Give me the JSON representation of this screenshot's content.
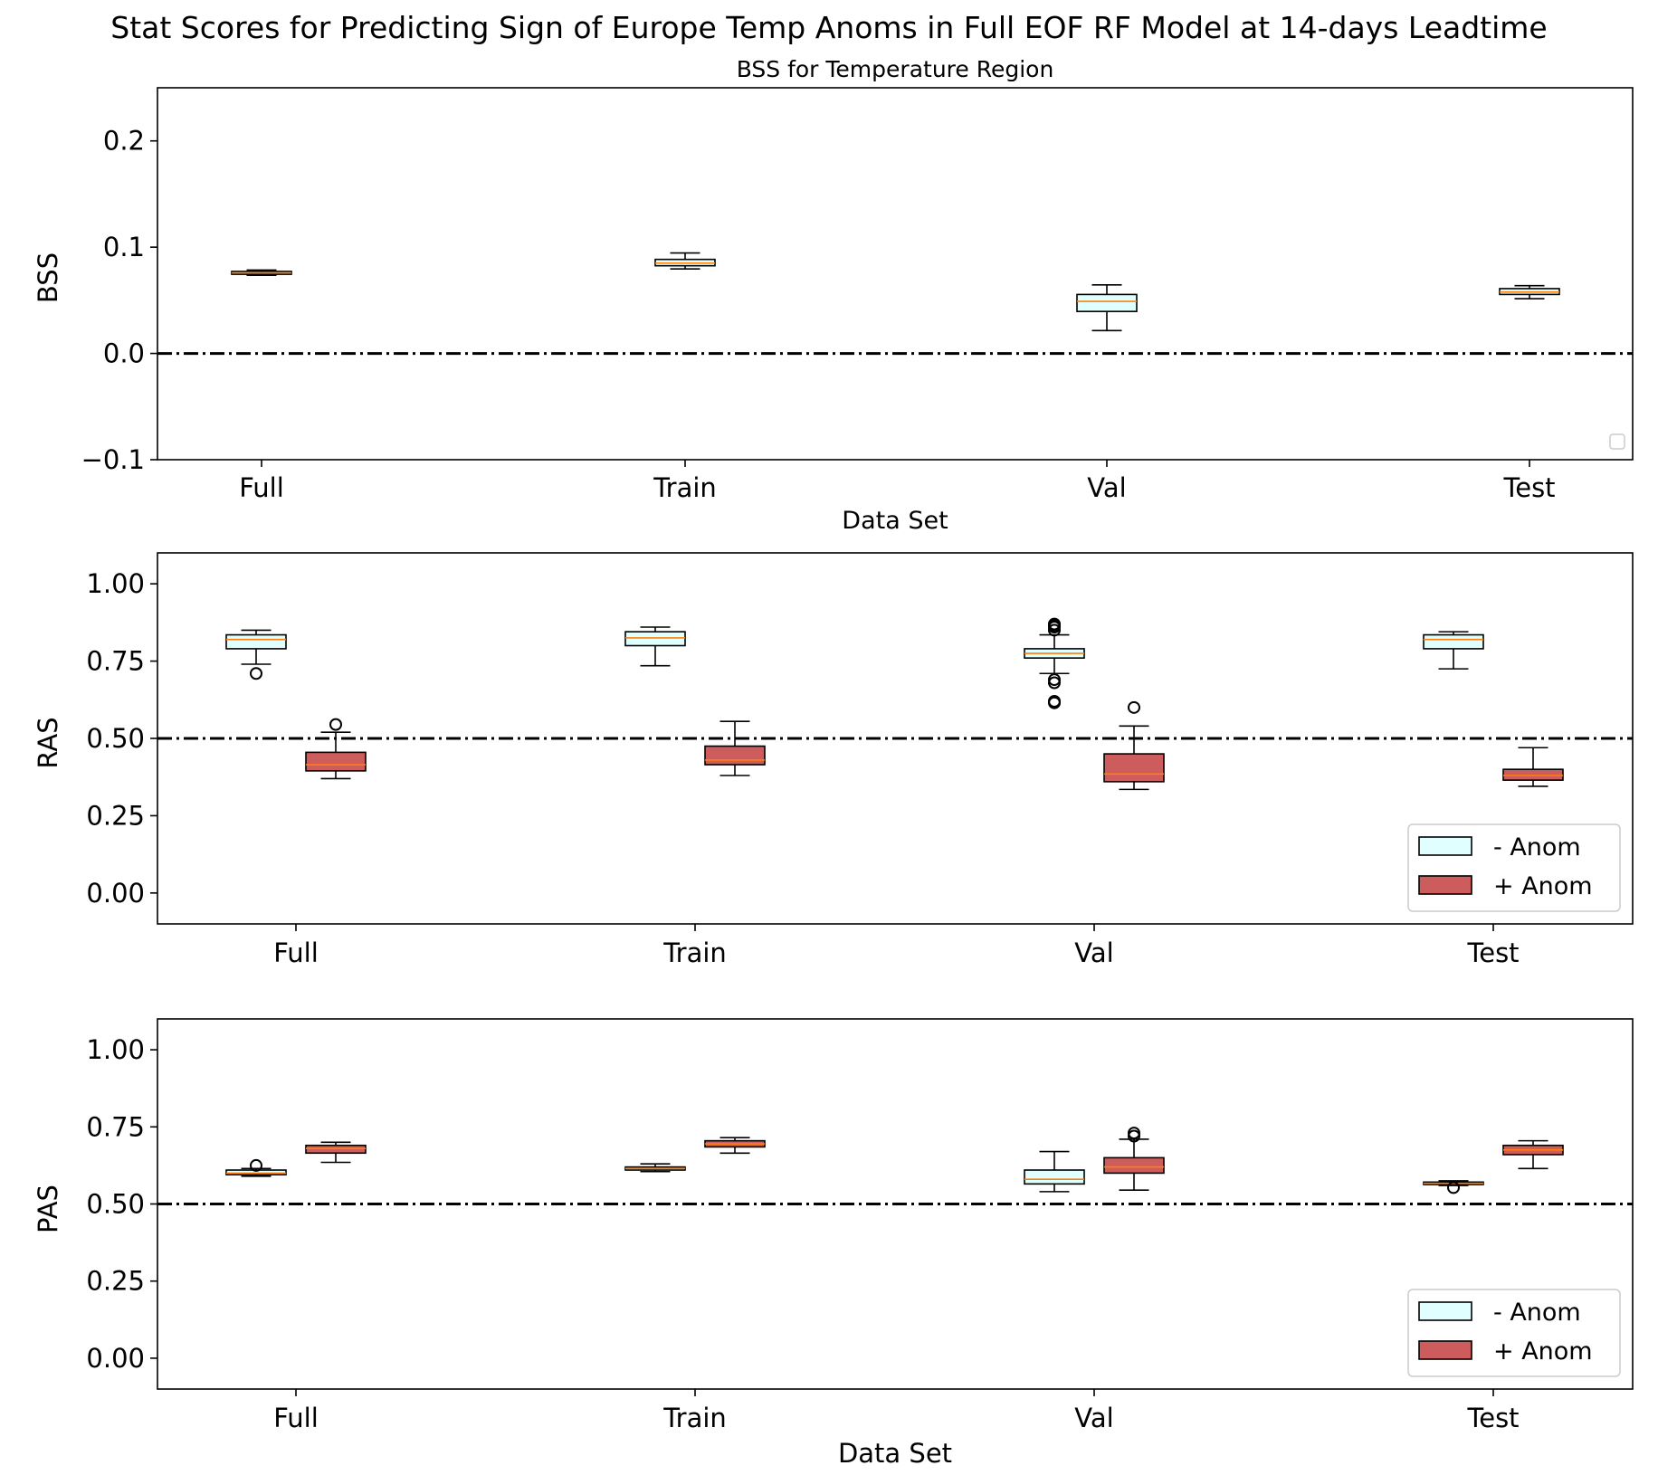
{
  "title": "Stat Scores for Predicting Sign of Europe Temp Anoms in Full EOF RF Model at 14-days Leadtime",
  "colors": {
    "neg_fill": "#e0ffff",
    "pos_fill": "#cd5c5c",
    "median": "#ff7f0e",
    "edge": "#000000"
  },
  "chart_data": [
    {
      "type": "box",
      "title": "BSS for Temperature Region",
      "xlabel": "Data Set",
      "ylabel": "BSS",
      "categories": [
        "Full",
        "Train",
        "Val",
        "Test"
      ],
      "ylim": [
        -0.1,
        0.25
      ],
      "yticks": [
        -0.1,
        0.0,
        0.1,
        0.2
      ],
      "ytick_labels": [
        "−0.1",
        "0.0",
        "0.1",
        "0.2"
      ],
      "reference_line": 0.0,
      "legend": {
        "position": "lower right",
        "entries": []
      },
      "series": [
        {
          "name": "",
          "color": "#e0ffff",
          "boxes": [
            {
              "whislo": 0.0735,
              "q1": 0.0745,
              "med": 0.0758,
              "q3": 0.0772,
              "whishi": 0.0785,
              "fliers": []
            },
            {
              "whislo": 0.0795,
              "q1": 0.0825,
              "med": 0.085,
              "q3": 0.0885,
              "whishi": 0.0945,
              "fliers": []
            },
            {
              "whislo": 0.0215,
              "q1": 0.0395,
              "med": 0.049,
              "q3": 0.0555,
              "whishi": 0.0645,
              "fliers": []
            },
            {
              "whislo": 0.0515,
              "q1": 0.0555,
              "med": 0.0578,
              "q3": 0.061,
              "whishi": 0.0638,
              "fliers": []
            }
          ]
        }
      ]
    },
    {
      "type": "box",
      "title": "",
      "xlabel": "",
      "ylabel": "RAS",
      "categories": [
        "Full",
        "Train",
        "Val",
        "Test"
      ],
      "ylim": [
        -0.1,
        1.1
      ],
      "yticks": [
        0.0,
        0.25,
        0.5,
        0.75,
        1.0
      ],
      "ytick_labels": [
        "0.00",
        "0.25",
        "0.50",
        "0.75",
        "1.00"
      ],
      "reference_line": 0.5,
      "legend": {
        "position": "lower right",
        "entries": [
          "- Anom",
          "+ Anom"
        ]
      },
      "series": [
        {
          "name": "- Anom",
          "color": "#e0ffff",
          "boxes": [
            {
              "whislo": 0.74,
              "q1": 0.79,
              "med": 0.82,
              "q3": 0.835,
              "whishi": 0.85,
              "fliers": [
                0.71
              ]
            },
            {
              "whislo": 0.735,
              "q1": 0.8,
              "med": 0.825,
              "q3": 0.845,
              "whishi": 0.86,
              "fliers": []
            },
            {
              "whislo": 0.71,
              "q1": 0.76,
              "med": 0.775,
              "q3": 0.79,
              "whishi": 0.835,
              "fliers": [
                0.85,
                0.86,
                0.865,
                0.87,
                0.69,
                0.68,
                0.62,
                0.615
              ]
            },
            {
              "whislo": 0.725,
              "q1": 0.79,
              "med": 0.82,
              "q3": 0.835,
              "whishi": 0.845,
              "fliers": []
            }
          ]
        },
        {
          "name": "+ Anom",
          "color": "#cd5c5c",
          "boxes": [
            {
              "whislo": 0.37,
              "q1": 0.395,
              "med": 0.415,
              "q3": 0.455,
              "whishi": 0.52,
              "fliers": [
                0.545
              ]
            },
            {
              "whislo": 0.38,
              "q1": 0.415,
              "med": 0.43,
              "q3": 0.475,
              "whishi": 0.555,
              "fliers": []
            },
            {
              "whislo": 0.335,
              "q1": 0.36,
              "med": 0.385,
              "q3": 0.45,
              "whishi": 0.54,
              "fliers": [
                0.6
              ]
            },
            {
              "whislo": 0.345,
              "q1": 0.365,
              "med": 0.38,
              "q3": 0.4,
              "whishi": 0.47,
              "fliers": []
            }
          ]
        }
      ]
    },
    {
      "type": "box",
      "title": "",
      "xlabel": "Data Set",
      "ylabel": "PAS",
      "categories": [
        "Full",
        "Train",
        "Val",
        "Test"
      ],
      "ylim": [
        -0.1,
        1.1
      ],
      "yticks": [
        0.0,
        0.25,
        0.5,
        0.75,
        1.0
      ],
      "ytick_labels": [
        "0.00",
        "0.25",
        "0.50",
        "0.75",
        "1.00"
      ],
      "reference_line": 0.5,
      "legend": {
        "position": "lower right",
        "entries": [
          "- Anom",
          "+ Anom"
        ]
      },
      "series": [
        {
          "name": "- Anom",
          "color": "#e0ffff",
          "boxes": [
            {
              "whislo": 0.59,
              "q1": 0.595,
              "med": 0.6,
              "q3": 0.61,
              "whishi": 0.615,
              "fliers": [
                0.625
              ]
            },
            {
              "whislo": 0.605,
              "q1": 0.61,
              "med": 0.615,
              "q3": 0.62,
              "whishi": 0.63,
              "fliers": []
            },
            {
              "whislo": 0.54,
              "q1": 0.565,
              "med": 0.58,
              "q3": 0.61,
              "whishi": 0.67,
              "fliers": []
            },
            {
              "whislo": 0.56,
              "q1": 0.563,
              "med": 0.567,
              "q3": 0.571,
              "whishi": 0.575,
              "fliers": [
                0.553
              ]
            }
          ]
        },
        {
          "name": "+ Anom",
          "color": "#cd5c5c",
          "boxes": [
            {
              "whislo": 0.635,
              "q1": 0.665,
              "med": 0.68,
              "q3": 0.69,
              "whishi": 0.7,
              "fliers": []
            },
            {
              "whislo": 0.665,
              "q1": 0.685,
              "med": 0.695,
              "q3": 0.705,
              "whishi": 0.715,
              "fliers": []
            },
            {
              "whislo": 0.545,
              "q1": 0.6,
              "med": 0.62,
              "q3": 0.65,
              "whishi": 0.71,
              "fliers": [
                0.72,
                0.73
              ]
            },
            {
              "whislo": 0.615,
              "q1": 0.66,
              "med": 0.675,
              "q3": 0.69,
              "whishi": 0.705,
              "fliers": []
            }
          ]
        }
      ]
    }
  ]
}
